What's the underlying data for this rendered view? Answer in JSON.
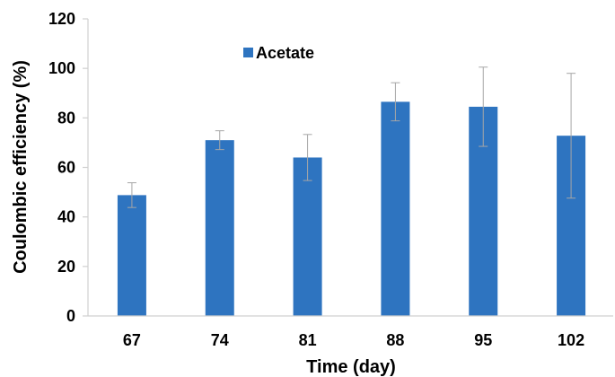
{
  "chart_data": {
    "type": "bar",
    "categories": [
      "67",
      "74",
      "81",
      "88",
      "95",
      "102"
    ],
    "series": [
      {
        "name": "Acetate",
        "values": [
          48.8,
          71,
          64,
          86.5,
          84.5,
          72.8
        ],
        "error": [
          5,
          3.8,
          9.3,
          7.7,
          16,
          25.2
        ],
        "color": "#2e74c0"
      }
    ],
    "xlabel": "Time (day)",
    "ylabel": "Coulombic efficiency (%)",
    "ylim": [
      0,
      120
    ],
    "yticks": [
      "0",
      "20",
      "40",
      "60",
      "80",
      "100",
      "120"
    ],
    "grid": false,
    "legend": "top-left inside plot",
    "error_bar_color": "#a6a6a6"
  }
}
